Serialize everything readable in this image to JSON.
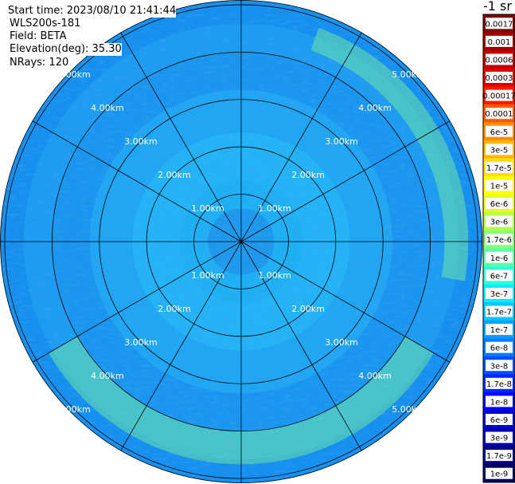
{
  "header": {
    "start_time": "Start time: 2023/08/10 21:41:44",
    "instrument": "WLS200s-181",
    "field": "Field: BETA",
    "elevation": "Elevation(deg): 35.30",
    "nrays": "NRays: 120"
  },
  "colorbar": {
    "unit_label": "-1 sr",
    "ticks": [
      "0.0017",
      "0.001",
      "0.0006",
      "0.0003",
      "0.00017",
      "0.0001",
      "6e-5",
      "3e-5",
      "1.7e-5",
      "1e-5",
      "6e-6",
      "3e-6",
      "1.7e-6",
      "1e-6",
      "6e-7",
      "3e-7",
      "1.7e-7",
      "1e-7",
      "6e-8",
      "3e-8",
      "1.7e-8",
      "1e-8",
      "6e-9",
      "3e-9",
      "1.7e-9",
      "1e-9"
    ],
    "colors": [
      "#7a0a0a",
      "#9a0000",
      "#c00000",
      "#e00000",
      "#ff1800",
      "#ff5a00",
      "#ff8c00",
      "#ffb400",
      "#ffe000",
      "#ffff00",
      "#e6ff1a",
      "#b4ff4a",
      "#84ff7a",
      "#58ffa8",
      "#2cffd8",
      "#00f0ff",
      "#00c8ff",
      "#00a0ff",
      "#0078ff",
      "#0050ff",
      "#0028ff",
      "#0000ff",
      "#0000d0",
      "#0000a8",
      "#000080",
      "#00005a"
    ]
  },
  "chart_data": {
    "type": "heatmap",
    "projection": "polar PPI",
    "field": "BETA",
    "range_rings_km": [
      1,
      2,
      3,
      4,
      5
    ],
    "range_labels": [
      "1.00km",
      "2.00km",
      "3.00km",
      "4.00km",
      "5.00km"
    ],
    "max_range_km": 5.1,
    "spokes_deg": [
      0,
      30,
      60,
      90,
      120,
      150,
      180,
      210,
      240,
      270,
      300,
      330
    ],
    "colorscale": "log",
    "value_range": [
      1e-09,
      0.0017
    ],
    "features": [
      {
        "description_value": "elevated band",
        "range_km": [
          4.3,
          4.8
        ],
        "azimuth_deg": [
          20,
          100
        ],
        "beta": 2e-06
      },
      {
        "description_value": "elevated band",
        "range_km": [
          4.0,
          4.7
        ],
        "azimuth_deg": [
          120,
          240
        ],
        "beta": 1.5e-06
      }
    ]
  }
}
